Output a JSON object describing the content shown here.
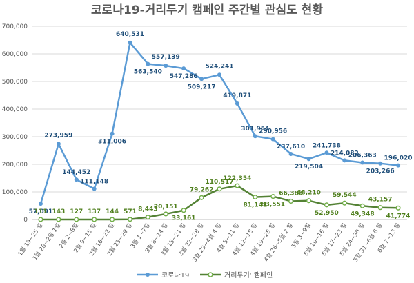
{
  "chart_data": {
    "type": "line",
    "title": "코로나19-거리두기 캠페인 주간별 관심도 현황",
    "xlabel": "",
    "ylabel": "",
    "ylim": [
      0,
      700000
    ],
    "yticks": [
      "0",
      "100,000",
      "200,000",
      "300,000",
      "400,000",
      "500,000",
      "600,000",
      "700,000"
    ],
    "grid": true,
    "legend_position": "bottom",
    "categories": [
      "1월 19~25 일",
      "1월 26~2월 1일",
      "2월 2~8일",
      "2월 9~15 일",
      "2월 16~22 일",
      "2월 23~29 일",
      "3월 1~7일",
      "3월 8~14 일",
      "3월 15~21 일",
      "3월 22~28 일",
      "3월 29~4월 4 일",
      "4월 5~11 일",
      "4월 12~18 일",
      "4월 19~25 일",
      "4월 26~5월 2 일",
      "5월 3~9일",
      "5월 10~16 일",
      "5월 17~23 일",
      "5월 24~30 일",
      "5월 31~6월 6 일",
      "6월 7~13 일"
    ],
    "series": [
      {
        "name": "코로나19",
        "color": "#5b9bd5",
        "values": [
          57091,
          273959,
          144452,
          111148,
          311006,
          640531,
          563540,
          557139,
          547286,
          509217,
          524241,
          419871,
          301954,
          290956,
          237610,
          219504,
          241738,
          214082,
          206363,
          203266,
          196020
        ],
        "labels": [
          "57,091",
          "273,959",
          "144,452",
          "111,148",
          "311,006",
          "640,531",
          "563,540",
          "557,139",
          "547,286",
          "509,217",
          "524,241",
          "419,871",
          "301,954",
          "290,956",
          "237,610",
          "219,504",
          "241,738",
          "214,082",
          "206,363",
          "203,266",
          "196,020"
        ]
      },
      {
        "name": "거리두기' 캠페인",
        "color": "#70ad47",
        "values": [
          111,
          143,
          127,
          137,
          144,
          571,
          8443,
          20151,
          33161,
          79262,
          110517,
          122354,
          81141,
          83551,
          66383,
          68210,
          52950,
          59544,
          49348,
          43157,
          41774
        ],
        "labels": [
          "111",
          "143",
          "127",
          "137",
          "144",
          "571",
          "8,443",
          "20,151",
          "33,161",
          "79,262",
          "110,517",
          "122,354",
          "81,141",
          "83,551",
          "66,383",
          "68,210",
          "52,950",
          "59,544",
          "49,348",
          "43,157",
          "41,774"
        ]
      }
    ]
  }
}
